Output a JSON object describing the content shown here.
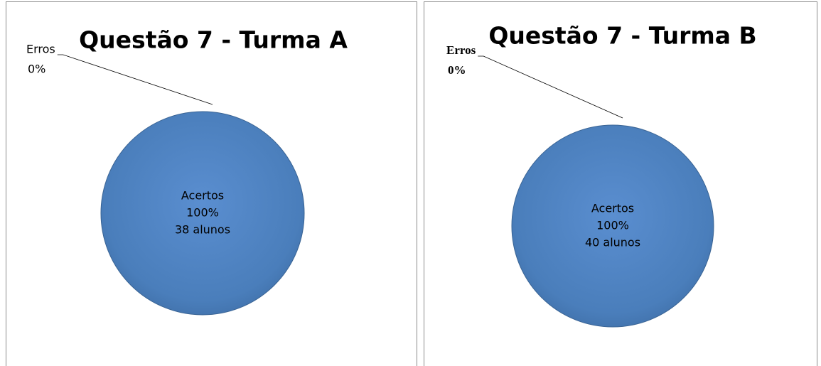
{
  "chart_data": [
    {
      "type": "pie",
      "title": "Questão 7 - Turma A",
      "categories": [
        "Acertos",
        "Erros"
      ],
      "values": [
        100,
        0
      ],
      "value_labels": [
        "100%",
        "0%"
      ],
      "annotations": [
        "38 alunos"
      ],
      "colors": [
        "#4a7ebb",
        "#c0504d"
      ]
    },
    {
      "type": "pie",
      "title": "Questão 7 - Turma B",
      "categories": [
        "Acertos",
        "Erros"
      ],
      "values": [
        100,
        0
      ],
      "value_labels": [
        "100%",
        "0%"
      ],
      "annotations": [
        "40 alunos"
      ],
      "colors": [
        "#4a7ebb",
        "#c0504d"
      ]
    }
  ]
}
